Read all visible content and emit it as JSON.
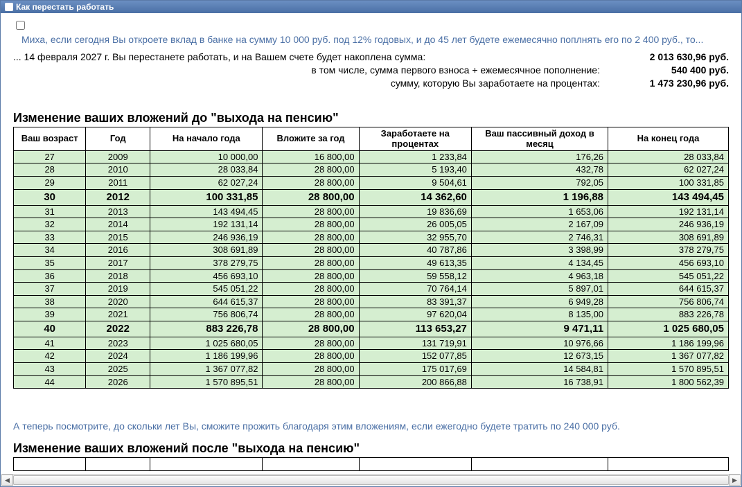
{
  "window": {
    "title": "Как перестать работать"
  },
  "intro": "Миха, если сегодня Вы откроете вклад в банке на сумму 10 000 руб. под 12% годовых, и до 45 лет будете ежемесячно поплнять его по 2 400 руб., то...",
  "summary": {
    "line1_left": "... 14 февраля 2027 г. Вы перестанете работать, и на Вашем счете будет накоплена сумма:",
    "line1_right": "2 013 630,96 руб.",
    "line2_left": "в том числе, сумма первого взноса + ежемесячное пополнение:",
    "line2_right": "540 400 руб.",
    "line3_left": "сумму, которую Вы заработаете на процентах:",
    "line3_right": "1 473 230,96 руб."
  },
  "section1_title": "Изменение ваших вложений до \"выхода на пенсию\"",
  "columns": {
    "c1": "Ваш возраст",
    "c2": "Год",
    "c3": "На начало года",
    "c4": "Вложите за год",
    "c5": "Заработаете на процентах",
    "c6": "Ваш пассивный доход в месяц",
    "c7": "На конец года"
  },
  "rows": [
    {
      "age": "27",
      "year": "2009",
      "start": "10 000,00",
      "invest": "16 800,00",
      "earn": "1 233,84",
      "passive": "176,26",
      "end": "28 033,84",
      "hl": false
    },
    {
      "age": "28",
      "year": "2010",
      "start": "28 033,84",
      "invest": "28 800,00",
      "earn": "5 193,40",
      "passive": "432,78",
      "end": "62 027,24",
      "hl": false
    },
    {
      "age": "29",
      "year": "2011",
      "start": "62 027,24",
      "invest": "28 800,00",
      "earn": "9 504,61",
      "passive": "792,05",
      "end": "100 331,85",
      "hl": false
    },
    {
      "age": "30",
      "year": "2012",
      "start": "100 331,85",
      "invest": "28 800,00",
      "earn": "14 362,60",
      "passive": "1 196,88",
      "end": "143 494,45",
      "hl": true
    },
    {
      "age": "31",
      "year": "2013",
      "start": "143 494,45",
      "invest": "28 800,00",
      "earn": "19 836,69",
      "passive": "1 653,06",
      "end": "192 131,14",
      "hl": false
    },
    {
      "age": "32",
      "year": "2014",
      "start": "192 131,14",
      "invest": "28 800,00",
      "earn": "26 005,05",
      "passive": "2 167,09",
      "end": "246 936,19",
      "hl": false
    },
    {
      "age": "33",
      "year": "2015",
      "start": "246 936,19",
      "invest": "28 800,00",
      "earn": "32 955,70",
      "passive": "2 746,31",
      "end": "308 691,89",
      "hl": false
    },
    {
      "age": "34",
      "year": "2016",
      "start": "308 691,89",
      "invest": "28 800,00",
      "earn": "40 787,86",
      "passive": "3 398,99",
      "end": "378 279,75",
      "hl": false
    },
    {
      "age": "35",
      "year": "2017",
      "start": "378 279,75",
      "invest": "28 800,00",
      "earn": "49 613,35",
      "passive": "4 134,45",
      "end": "456 693,10",
      "hl": false
    },
    {
      "age": "36",
      "year": "2018",
      "start": "456 693,10",
      "invest": "28 800,00",
      "earn": "59 558,12",
      "passive": "4 963,18",
      "end": "545 051,22",
      "hl": false
    },
    {
      "age": "37",
      "year": "2019",
      "start": "545 051,22",
      "invest": "28 800,00",
      "earn": "70 764,14",
      "passive": "5 897,01",
      "end": "644 615,37",
      "hl": false
    },
    {
      "age": "38",
      "year": "2020",
      "start": "644 615,37",
      "invest": "28 800,00",
      "earn": "83 391,37",
      "passive": "6 949,28",
      "end": "756 806,74",
      "hl": false
    },
    {
      "age": "39",
      "year": "2021",
      "start": "756 806,74",
      "invest": "28 800,00",
      "earn": "97 620,04",
      "passive": "8 135,00",
      "end": "883 226,78",
      "hl": false
    },
    {
      "age": "40",
      "year": "2022",
      "start": "883 226,78",
      "invest": "28 800,00",
      "earn": "113 653,27",
      "passive": "9 471,11",
      "end": "1 025 680,05",
      "hl": true
    },
    {
      "age": "41",
      "year": "2023",
      "start": "1 025 680,05",
      "invest": "28 800,00",
      "earn": "131 719,91",
      "passive": "10 976,66",
      "end": "1 186 199,96",
      "hl": false
    },
    {
      "age": "42",
      "year": "2024",
      "start": "1 186 199,96",
      "invest": "28 800,00",
      "earn": "152 077,85",
      "passive": "12 673,15",
      "end": "1 367 077,82",
      "hl": false
    },
    {
      "age": "43",
      "year": "2025",
      "start": "1 367 077,82",
      "invest": "28 800,00",
      "earn": "175 017,69",
      "passive": "14 584,81",
      "end": "1 570 895,51",
      "hl": false
    },
    {
      "age": "44",
      "year": "2026",
      "start": "1 570 895,51",
      "invest": "28 800,00",
      "earn": "200 866,88",
      "passive": "16 738,91",
      "end": "1 800 562,39",
      "hl": false
    }
  ],
  "post_note": "А теперь посмотрите, до скольки лет Вы, сможите прожить благодаря этим вложениям, если ежегодно будете тратить по 240 000 руб.",
  "section2_title": "Изменение ваших вложений после \"выхода на пенсию\"",
  "colors": {
    "titlebar_from": "#6b8fc2",
    "titlebar_to": "#4a6fa5",
    "link_blue": "#4a6fa5",
    "row_green": "#d5eed0",
    "border": "#000000"
  }
}
